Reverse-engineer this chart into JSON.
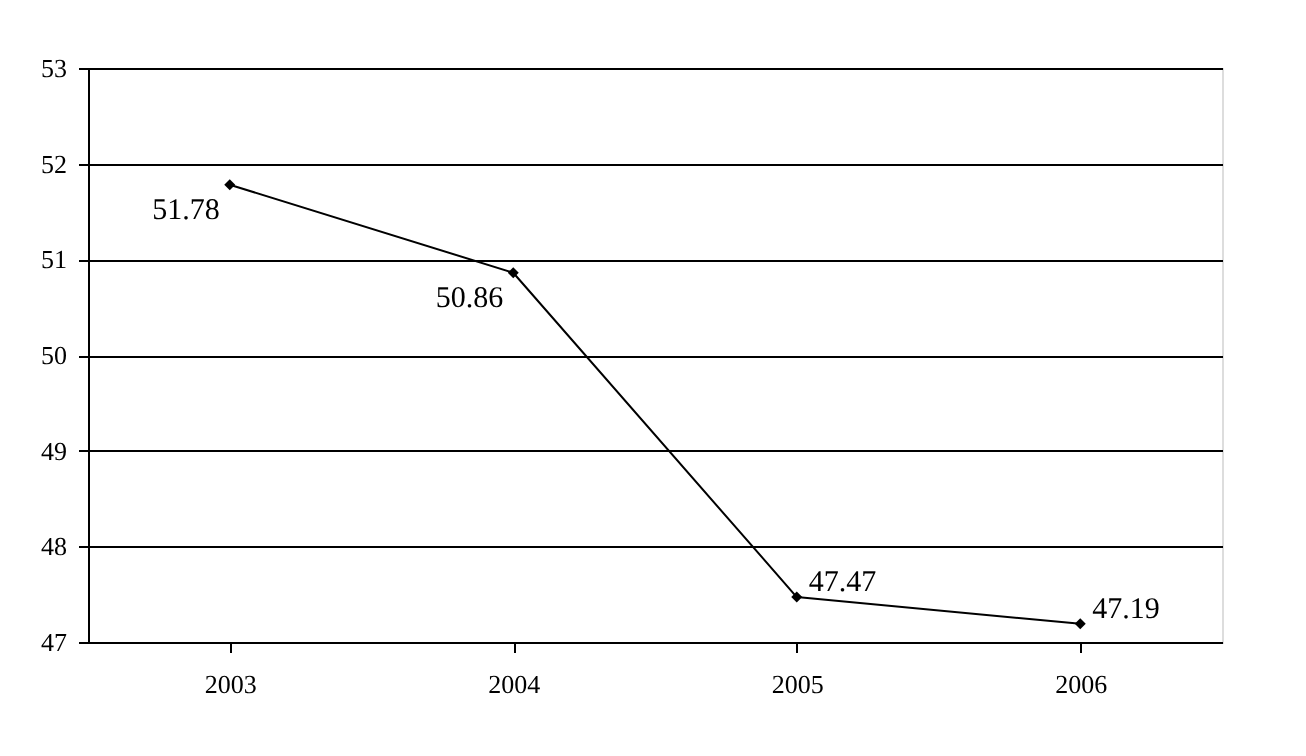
{
  "chart_data": {
    "type": "line",
    "categories": [
      "2003",
      "2004",
      "2005",
      "2006"
    ],
    "series": [
      {
        "color": "#000000",
        "values": [
          51.78,
          50.86,
          47.47,
          47.19
        ]
      }
    ],
    "ylim": [
      47,
      53
    ],
    "yticks": [
      47,
      48,
      49,
      50,
      51,
      52,
      53
    ],
    "grid": "y",
    "marker": "diamond",
    "line_style": "solid",
    "data_labels": true
  }
}
